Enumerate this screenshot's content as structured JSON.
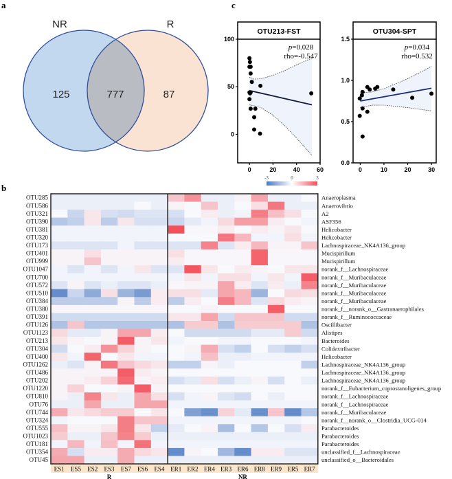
{
  "panel_labels": {
    "a": "a",
    "b": "b",
    "c": "c"
  },
  "chart_data": [
    {
      "type": "venn",
      "panel": "a",
      "sets": [
        {
          "name": "NR",
          "only": 125,
          "color": "#c2d8ef"
        },
        {
          "name": "R",
          "only": 87,
          "color": "#fbe3d4"
        }
      ],
      "intersection": 777,
      "intersection_color": "#babcc4",
      "stroke_color": "#2f4e9a"
    },
    {
      "type": "scatter",
      "panel": "c",
      "title": "OTU213-FST",
      "annotation": {
        "p_label": "p",
        "p_value": "=0.028",
        "rho": "rho=-0.547"
      },
      "xlim": [
        -10,
        60
      ],
      "ylim": [
        -30,
        100
      ],
      "xticks": [
        0,
        20,
        40,
        60
      ],
      "yticks": [
        0,
        50,
        100
      ],
      "points": [
        [
          0,
          80
        ],
        [
          0.4,
          76
        ],
        [
          0,
          71
        ],
        [
          1,
          71
        ],
        [
          1,
          64
        ],
        [
          2,
          55
        ],
        [
          9.3,
          51
        ],
        [
          0,
          44
        ],
        [
          1,
          44
        ],
        [
          0.5,
          43
        ],
        [
          0,
          37
        ],
        [
          1,
          27
        ],
        [
          5,
          27
        ],
        [
          4,
          18
        ],
        [
          4,
          5
        ],
        [
          9,
          0.7
        ],
        [
          52.5,
          43
        ]
      ],
      "fit": [
        [
          0,
          46
        ],
        [
          53,
          31
        ]
      ],
      "ci_upper": [
        [
          0,
          60
        ],
        [
          4,
          58
        ],
        [
          10,
          58.5
        ],
        [
          20,
          62
        ],
        [
          30,
          67
        ],
        [
          40,
          73
        ],
        [
          53,
          80
        ]
      ],
      "ci_lower": [
        [
          0,
          31
        ],
        [
          4,
          30
        ],
        [
          10,
          28
        ],
        [
          20,
          20
        ],
        [
          30,
          9
        ],
        [
          40,
          -4
        ],
        [
          53,
          -22
        ]
      ],
      "line_color": "#141a3c"
    },
    {
      "type": "scatter",
      "panel": "c",
      "title": "OTU304-SPT",
      "annotation": {
        "p_label": "p",
        "p_value": "=0.034",
        "rho": "rho=0.532"
      },
      "xlim": [
        -3,
        32
      ],
      "ylim": [
        0,
        1.5
      ],
      "xticks": [
        0,
        10,
        20,
        30
      ],
      "yticks": [
        "0.0",
        "0.5",
        "1.0",
        "1.5"
      ],
      "points": [
        [
          -0.2,
          0.78
        ],
        [
          0.7,
          0.82
        ],
        [
          1,
          0.86
        ],
        [
          -0.2,
          0.57
        ],
        [
          1,
          0.66
        ],
        [
          1,
          0.32
        ],
        [
          3,
          0.92
        ],
        [
          4,
          0.89
        ],
        [
          3,
          0.62
        ],
        [
          6.3,
          0.9
        ],
        [
          7.2,
          0.92
        ],
        [
          13.9,
          0.89
        ],
        [
          21.9,
          0.79
        ],
        [
          30,
          0.84
        ]
      ],
      "fit": [
        [
          0,
          0.75
        ],
        [
          30,
          0.905
        ]
      ],
      "ci_upper": [
        [
          0,
          0.85
        ],
        [
          5,
          0.86
        ],
        [
          10,
          0.9
        ],
        [
          20,
          1.02
        ],
        [
          30,
          1.17
        ]
      ],
      "ci_lower": [
        [
          0,
          0.67
        ],
        [
          5,
          0.7
        ],
        [
          10,
          0.7
        ],
        [
          20,
          0.67
        ],
        [
          30,
          0.63
        ]
      ],
      "line_color": "#1b2a78"
    },
    {
      "type": "heatmap",
      "panel": "b",
      "colorbar": {
        "min": -3,
        "mid": 0,
        "max": 3,
        "labels": [
          "-3",
          "0",
          "3"
        ],
        "low_color": "#4a78c2",
        "high_color": "#f2505a"
      },
      "groups": [
        {
          "name": "R",
          "columns": [
            "ES1",
            "ES5",
            "ES2",
            "ES3",
            "ES7",
            "ES6",
            "ES4"
          ]
        },
        {
          "name": "NR",
          "columns": [
            "ER1",
            "ER2",
            "ER4",
            "ER3",
            "ER6",
            "ER8",
            "ER9",
            "ER5",
            "ER7"
          ]
        }
      ],
      "rows": [
        {
          "otu": "OTU285",
          "taxon": "Anaeroplasma",
          "values": [
            -0.2,
            -0.2,
            -0.2,
            -0.2,
            -0.2,
            -0.2,
            -0.2,
            0.8,
            1.6,
            -0.2,
            -0.2,
            0.1,
            1.3,
            -0.2,
            -0.2,
            0
          ]
        },
        {
          "otu": "OTU586",
          "taxon": "Anaerovibrio",
          "values": [
            -0.2,
            -0.2,
            -0.2,
            -0.2,
            -0.2,
            0,
            -0.2,
            0.1,
            0,
            0.8,
            -0.2,
            0,
            0.4,
            2.0,
            -0.2,
            -0.2
          ]
        },
        {
          "otu": "OTU321",
          "taxon": "A2",
          "values": [
            0,
            -0.7,
            0.3,
            -0.5,
            -0.6,
            -0.4,
            -0.4,
            -0.5,
            0,
            0.2,
            -0.2,
            -0.1,
            1.9,
            0.9,
            0.4,
            0
          ]
        },
        {
          "otu": "OTU390",
          "taxon": "ASF356",
          "values": [
            -1.0,
            -0.8,
            0.3,
            -0.9,
            0.3,
            -0.5,
            -0.5,
            -0.7,
            -0.3,
            -0.1,
            0.5,
            1.4,
            1.4,
            0.2,
            0,
            -0.1
          ]
        },
        {
          "otu": "OTU381",
          "taxon": "Helicobacter",
          "values": [
            -0.1,
            -0.1,
            -0.1,
            -0.1,
            -0.1,
            -0.1,
            -0.1,
            2.6,
            0.05,
            0.05,
            0.2,
            0,
            0.2,
            0.1,
            0.3,
            0
          ]
        },
        {
          "otu": "OTU320",
          "taxon": "Helicobacter",
          "values": [
            -0.1,
            -0.1,
            -0.1,
            -0.1,
            -0.1,
            -0.1,
            -0.1,
            0,
            0,
            0,
            2.0,
            1.0,
            -0.1,
            -0.1,
            0.4,
            -0.1
          ]
        },
        {
          "otu": "OTU173",
          "taxon": "Lachnospiraceae_NK4A136_group",
          "values": [
            -0.4,
            -0.4,
            -0.4,
            -0.4,
            -0.1,
            -0.4,
            -0.4,
            -0.4,
            -0.4,
            1.8,
            -0.4,
            0.2,
            1.0,
            0.1,
            0.1,
            0.8
          ]
        },
        {
          "otu": "OTU401",
          "taxon": "Mucispirillum",
          "values": [
            0.1,
            0.1,
            0.4,
            0.1,
            0.1,
            0.1,
            0.1,
            0.4,
            0.05,
            0.05,
            0.05,
            0.05,
            2.3,
            0.05,
            0.05,
            0.05
          ]
        },
        {
          "otu": "OTU999",
          "taxon": "Mucispirillum",
          "values": [
            0.1,
            0.1,
            0.8,
            0.1,
            0.1,
            0.1,
            0.1,
            0.2,
            0.05,
            0.05,
            0.05,
            0.05,
            2.3,
            0.05,
            0.05,
            0.05
          ]
        },
        {
          "otu": "OTU1047",
          "taxon": "norank_f__Lachnospiraceae",
          "values": [
            -0.1,
            -0.4,
            -0.1,
            -0.4,
            -0.1,
            0.3,
            -0.4,
            -0.4,
            2.5,
            0.3,
            0,
            0.2,
            0.1,
            0,
            0.3,
            0.3
          ]
        },
        {
          "otu": "OTU700",
          "taxon": "norank_f__Muribaculaceae",
          "values": [
            -0.1,
            -0.1,
            -0.1,
            -0.1,
            -0.1,
            -0.1,
            -0.1,
            -0.1,
            0.3,
            -0.1,
            0.4,
            0.4,
            -0.1,
            0.3,
            -0.1,
            2.4
          ]
        },
        {
          "otu": "OTU572",
          "taxon": "norank_f__Muribaculaceae",
          "values": [
            -0.4,
            0.1,
            -0.4,
            -0.2,
            -0.4,
            -0.4,
            -0.2,
            0.05,
            0.1,
            0.1,
            1.3,
            0.2,
            -0.4,
            0.2,
            -0.2,
            1.8
          ]
        },
        {
          "otu": "OTU510",
          "taxon": "norank_f__Muribaculaceae",
          "values": [
            -2.2,
            -0.7,
            -1.6,
            0.4,
            -1.4,
            -1.9,
            0.2,
            0.4,
            0.4,
            -0.3,
            1.3,
            1.0,
            -1.4,
            0,
            0.5,
            0.4
          ]
        },
        {
          "otu": "OTU384",
          "taxon": "norank_f__Muribaculaceae",
          "values": [
            -0.9,
            -0.9,
            -0.9,
            -0.9,
            0.1,
            -0.9,
            0.2,
            -0.9,
            0.2,
            0,
            1.9,
            1.0,
            -0.4,
            0.5,
            0.2,
            0.1
          ]
        },
        {
          "otu": "OTU380",
          "taxon": "norank_f__norank_o__Gastranaerophilales",
          "values": [
            0.05,
            0.05,
            0.05,
            0.05,
            0.05,
            0.05,
            0.05,
            0,
            0,
            0.1,
            0,
            0,
            0,
            2.4,
            0,
            0
          ]
        },
        {
          "otu": "OTU391",
          "taxon": "norank_f__Ruminococcaceae",
          "values": [
            -0.6,
            -0.6,
            -0.6,
            -0.6,
            -0.6,
            -0.6,
            -0.6,
            0.3,
            0.3,
            1.3,
            -0.6,
            0.8,
            0.8,
            0.8,
            -0.6,
            -0.6
          ]
        },
        {
          "otu": "OTU126",
          "taxon": "Oscillibacter",
          "values": [
            -1.1,
            0.8,
            -1.0,
            -1.0,
            -1.0,
            -1.0,
            -1.0,
            -1.1,
            0.7,
            0.7,
            -1.1,
            0.7,
            0.7,
            0.7,
            0.7,
            -1.1
          ]
        },
        {
          "otu": "OTU1123",
          "taxon": "Alistipes",
          "values": [
            0.5,
            -0.3,
            -0.3,
            0.1,
            1.3,
            1.3,
            0.2,
            0,
            -0.6,
            -0.6,
            -0.6,
            -0.6,
            -0.3,
            -0.3,
            0.7,
            -0.6
          ]
        },
        {
          "otu": "OTU213",
          "taxon": "Bacteroides",
          "values": [
            0.3,
            0.1,
            0,
            0.1,
            2.4,
            0.1,
            0.3,
            -0.1,
            0,
            0,
            -0.1,
            -0.1,
            0,
            0,
            0,
            -0.1
          ]
        },
        {
          "otu": "OTU304",
          "taxon": "Colidextribacter",
          "values": [
            -0.6,
            0,
            0.2,
            1.6,
            0.6,
            0.1,
            0,
            0,
            0.1,
            1.2,
            -0.5,
            -0.8,
            0,
            -0.5,
            -0.8,
            -0.5
          ]
        },
        {
          "otu": "OTU400",
          "taxon": "Helicobacter",
          "values": [
            0.3,
            -0.1,
            2.3,
            0,
            0.3,
            -0.1,
            -0.1,
            0,
            -0.1,
            0.9,
            -0.2,
            -0.2,
            -0.1,
            -0.1,
            -0.1,
            -0.1
          ]
        },
        {
          "otu": "OTU1262",
          "taxon": "Lachnospiraceae_NK4A136_group",
          "values": [
            -0.2,
            -0.4,
            0.1,
            2.0,
            0.8,
            0.5,
            0.3,
            -0.8,
            -0.8,
            0.1,
            -0.2,
            0,
            0,
            0,
            0,
            -0.8
          ]
        },
        {
          "otu": "OTU486",
          "taxon": "Lachnospiraceae_NK4A136_group",
          "values": [
            0.1,
            0.1,
            0.1,
            0.1,
            2.4,
            0.2,
            0.1,
            0,
            0,
            0,
            0,
            0,
            0,
            0,
            0,
            0
          ]
        },
        {
          "otu": "OTU202",
          "taxon": "Lachnospiraceae_NK4A136_group",
          "values": [
            0.1,
            0.1,
            0.2,
            0.6,
            2.2,
            0.1,
            0.2,
            -0.5,
            -0.3,
            0.4,
            -0.5,
            -0.2,
            0.1,
            -0.5,
            0,
            -0.2
          ]
        },
        {
          "otu": "OTU1220",
          "taxon": "norank_f__Eubacterium_coprostanoligenes_group",
          "values": [
            0.1,
            0.6,
            0,
            0,
            0.1,
            2.4,
            0.1,
            0,
            0,
            0,
            0,
            0,
            0,
            0,
            0,
            0
          ]
        },
        {
          "otu": "OTU810",
          "taxon": "norank_f__Lachnospiraceae",
          "values": [
            0.1,
            -0.2,
            1.8,
            0.3,
            -0.2,
            1.3,
            0.4,
            -0.5,
            -0.1,
            0.1,
            -0.4,
            -0.6,
            0,
            -0.2,
            0,
            0
          ]
        },
        {
          "otu": "OTU76",
          "taxon": "norank_f__Lachnospiraceae",
          "values": [
            -0.2,
            -0.2,
            1.3,
            -0.2,
            -0.2,
            1.3,
            1.3,
            -0.1,
            -0.1,
            -0.1,
            -0.1,
            -0.1,
            -0.1,
            -0.1,
            -0.1,
            -0.1
          ]
        },
        {
          "otu": "OTU744",
          "taxon": "norank_f__Muribaculaceae",
          "values": [
            1.2,
            0.3,
            0.5,
            0.7,
            0.7,
            0,
            0.3,
            0,
            -1.8,
            -2.1,
            0.6,
            -0.3,
            -2.1,
            0.8,
            -2.2,
            -1.0
          ]
        },
        {
          "otu": "OTU324",
          "taxon": "norank_f__norank_o__Clostridia_UCG-014",
          "values": [
            -0.1,
            0,
            0,
            0,
            1.9,
            0.8,
            0.8,
            -0.1,
            -0.1,
            -0.1,
            -0.1,
            -0.1,
            -0.1,
            -0.1,
            -0.1,
            0
          ]
        },
        {
          "otu": "OTU555",
          "taxon": "Parabacteroides",
          "values": [
            0.9,
            0.1,
            0.1,
            0.3,
            1.9,
            0.3,
            -0.8,
            -0.3,
            0,
            0.1,
            -1.2,
            0,
            -1.0,
            0,
            -0.5,
            0.2
          ]
        },
        {
          "otu": "OTU1023",
          "taxon": "Parabacteroides",
          "values": [
            0.7,
            -0.2,
            -0.2,
            0.8,
            1.8,
            0.7,
            -0.2,
            -0.2,
            -0.2,
            -0.2,
            -0.2,
            -0.2,
            -0.2,
            -0.2,
            -0.2,
            -0.2
          ]
        },
        {
          "otu": "OTU181",
          "taxon": "Parabacteroides",
          "values": [
            -0.1,
            1.0,
            -0.1,
            0.9,
            -0.1,
            2.1,
            -0.1,
            -0.1,
            -0.1,
            -0.1,
            -0.1,
            -0.1,
            -0.1,
            -0.1,
            -0.1,
            -0.1
          ]
        },
        {
          "otu": "OTU354",
          "taxon": "unclassified_f__Lachnospiraceae",
          "values": [
            1.2,
            -0.5,
            0.2,
            0.2,
            1.2,
            0.5,
            0.3,
            -2.2,
            0.1,
            0,
            -1.3,
            -2.2,
            0.2,
            0.2,
            -0.4,
            -0.4
          ]
        },
        {
          "otu": "OTU45",
          "taxon": "unclassified_o__Bacteroidales",
          "values": [
            1.3,
            1.3,
            -0.2,
            -0.2,
            1.2,
            -0.2,
            -0.2,
            -0.2,
            -0.2,
            -0.2,
            -0.2,
            -0.2,
            -0.2,
            -0.2,
            -0.2,
            -0.2
          ]
        }
      ],
      "column_band_color": "#fbe6cc"
    }
  ]
}
